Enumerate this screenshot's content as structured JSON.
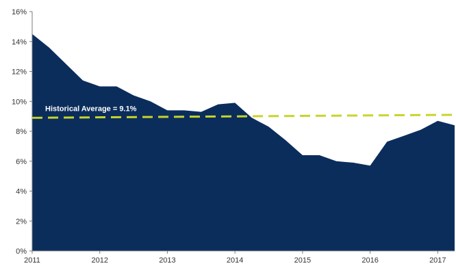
{
  "chart_data": {
    "type": "area",
    "x": [
      2011.0,
      2011.25,
      2011.5,
      2011.75,
      2012.0,
      2012.25,
      2012.5,
      2012.75,
      2013.0,
      2013.25,
      2013.5,
      2013.75,
      2014.0,
      2014.25,
      2014.5,
      2014.75,
      2015.0,
      2015.25,
      2015.5,
      2015.75,
      2016.0,
      2016.25,
      2016.5,
      2016.75,
      2017.0,
      2017.25
    ],
    "series": [
      {
        "values": [
          14.5,
          13.6,
          12.5,
          11.4,
          11.0,
          11.0,
          10.4,
          10.0,
          9.4,
          9.4,
          9.3,
          9.8,
          9.9,
          8.9,
          8.3,
          7.4,
          6.4,
          6.4,
          6.0,
          5.9,
          5.7,
          7.3,
          7.7,
          8.1,
          8.7,
          8.4
        ],
        "color": "#0b2d5c"
      }
    ],
    "reference_line": {
      "label": "Historical Average = 9.1%",
      "start_value": 8.9,
      "end_value": 9.1,
      "color": "#c8d42a"
    },
    "y_ticks": [
      "0%",
      "2%",
      "4%",
      "6%",
      "8%",
      "10%",
      "12%",
      "14%",
      "16%"
    ],
    "x_ticks": [
      "2011",
      "2012",
      "2013",
      "2014",
      "2015",
      "2016",
      "2017"
    ],
    "ylim": [
      0,
      16
    ],
    "xlim": [
      2011.0,
      2017.25
    ],
    "title": "",
    "xlabel": "",
    "ylabel": "",
    "grid": false,
    "legend": "none"
  }
}
